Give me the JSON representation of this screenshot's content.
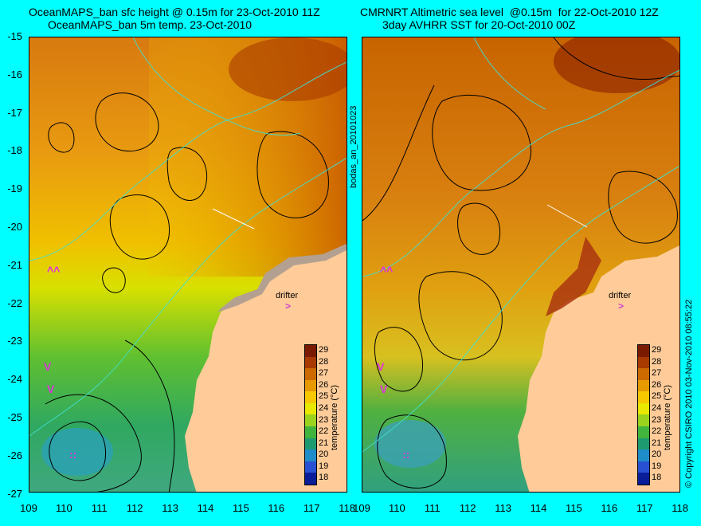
{
  "left": {
    "title_line1": "OceanMAPS_ban sfc height @ 0.15m for 23-Oct-2010 11Z",
    "title_line2": "OceanMAPS_ban 5m temp. 23-Oct-2010"
  },
  "right": {
    "title_line1": "CMRNRT Altimetric sea level  @0.15m  for 22-Oct-2010 12Z",
    "title_line2": "3day AVHRR SST for 20-Oct-2010 00Z"
  },
  "side_label": "bodas_an_20101023",
  "copyright": "© Copyright CSIRO 2010   03-Nov-2010 08:55:22",
  "drifter_label": "drifter",
  "drifter_mark": ">",
  "y_ticks": [
    "-15",
    "-16",
    "-17",
    "-18",
    "-19",
    "-20",
    "-21",
    "-22",
    "-23",
    "-24",
    "-25",
    "-26",
    "-27"
  ],
  "x_ticks": [
    "109",
    "110",
    "111",
    "112",
    "113",
    "114",
    "115",
    "116",
    "117",
    "118"
  ],
  "colorbar": {
    "title": "temperature (°C)",
    "labels": [
      "29",
      "28",
      "27",
      "26",
      "25",
      "24",
      "23",
      "22",
      "21",
      "20",
      "19",
      "18"
    ],
    "colors": [
      "#7a1a00",
      "#a83a00",
      "#cc6a00",
      "#e69a00",
      "#f5c800",
      "#e8e800",
      "#9ad21e",
      "#40b43c",
      "#1e9a70",
      "#1e8cc8",
      "#2850d2",
      "#0a1e9a"
    ]
  }
}
